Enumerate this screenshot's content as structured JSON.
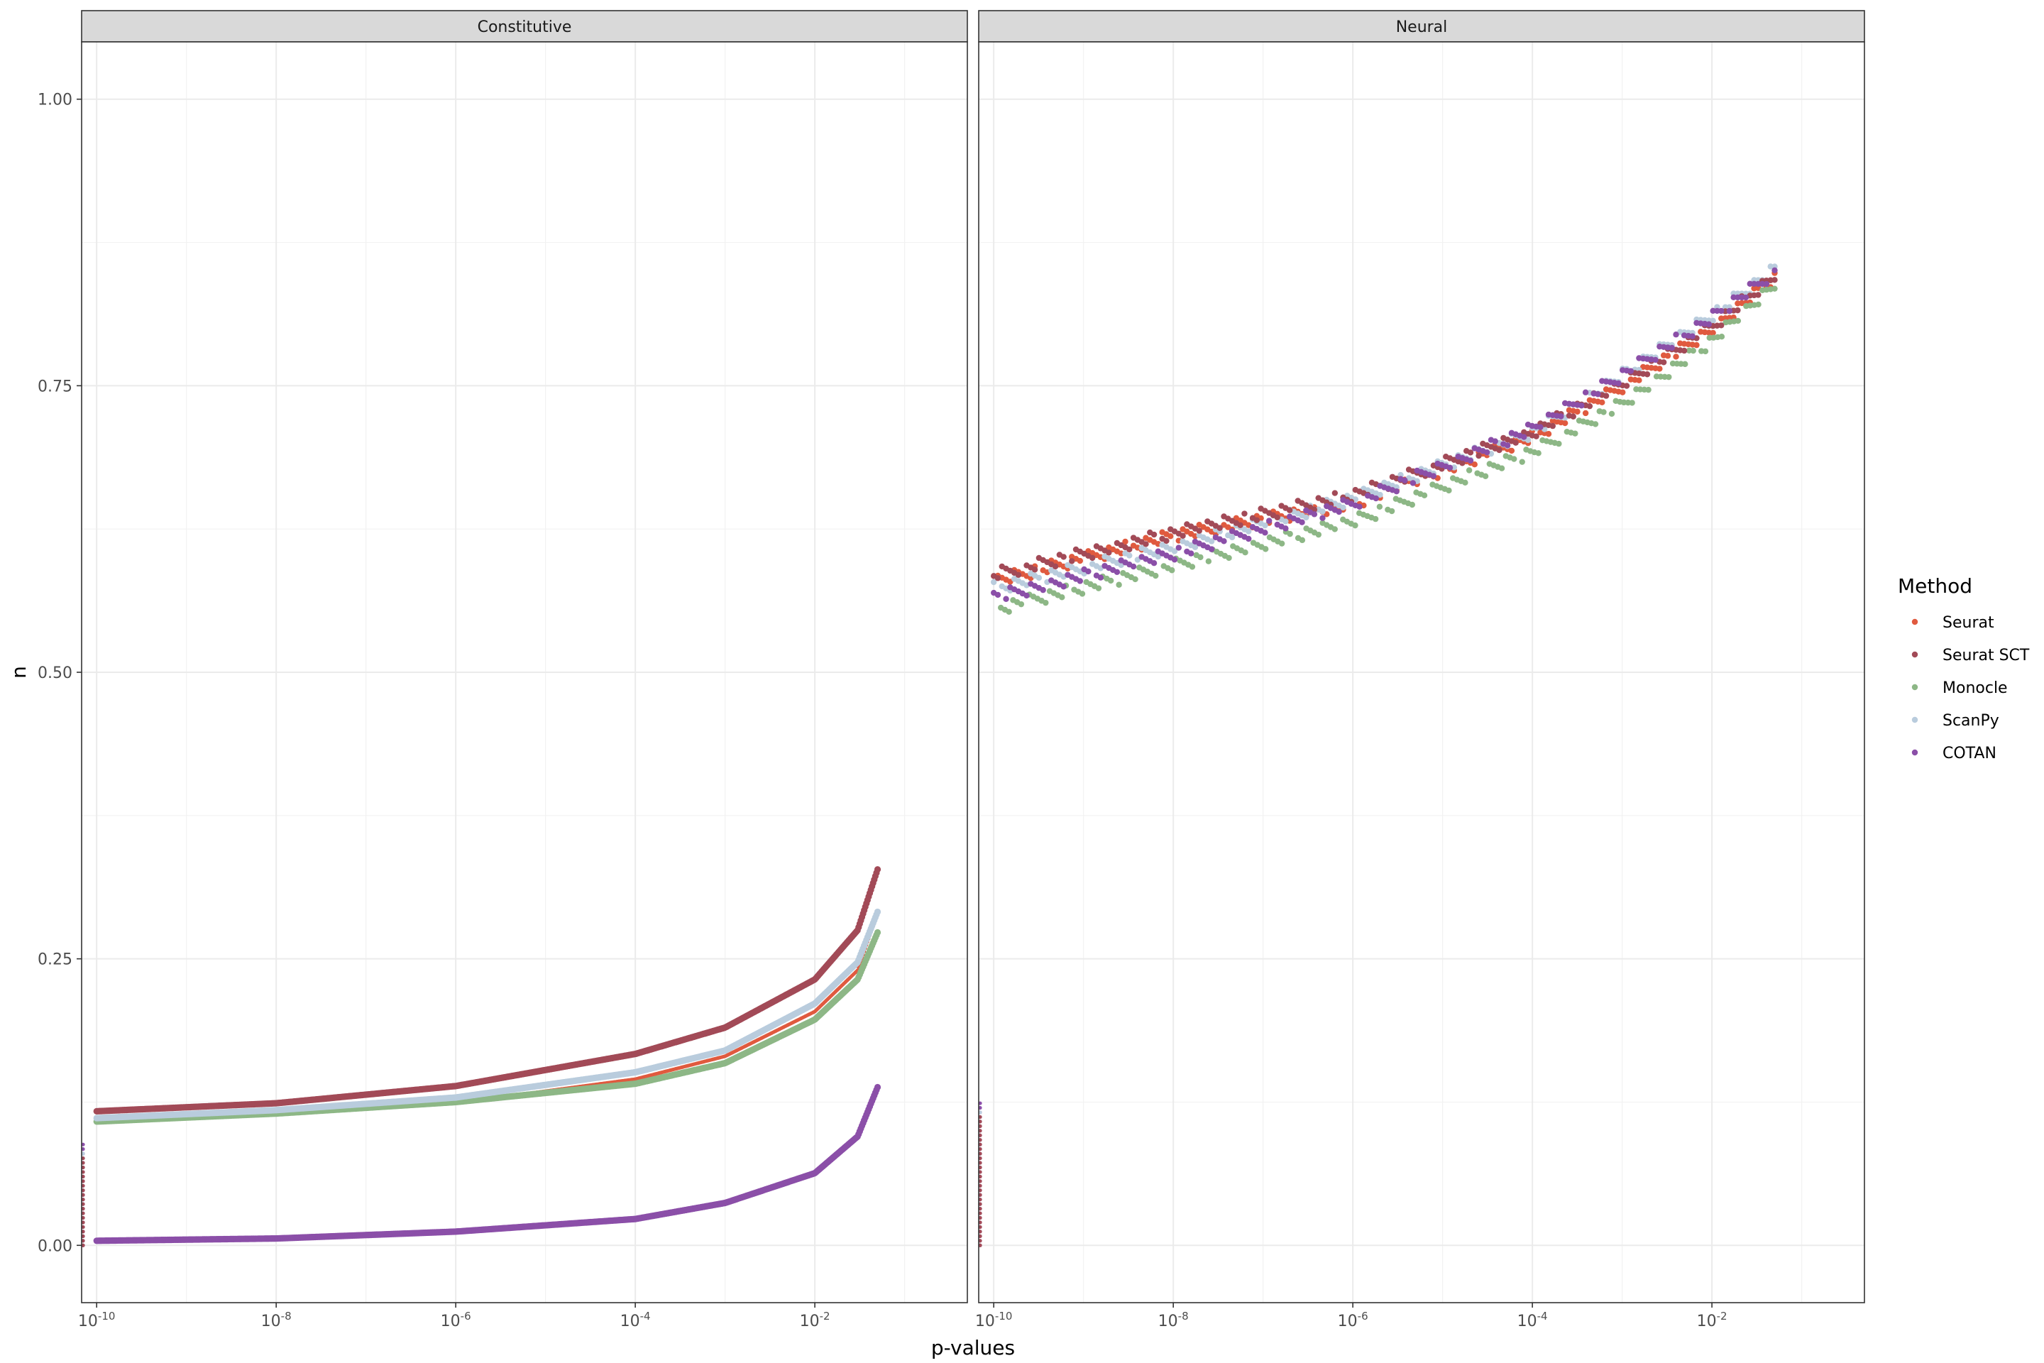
{
  "chart_data": {
    "type": "scatter",
    "x_scale": "log10",
    "xlabel": "p-values",
    "ylabel": "n",
    "xlim": [
      6.8e-11,
      0.5
    ],
    "ylim": [
      -0.05,
      1.05
    ],
    "x_ticks": [
      {
        "base": "10",
        "exp": "-10",
        "value": 1e-10
      },
      {
        "base": "10",
        "exp": "-8",
        "value": 1e-08
      },
      {
        "base": "10",
        "exp": "-6",
        "value": 1e-06
      },
      {
        "base": "10",
        "exp": "-4",
        "value": 0.0001
      },
      {
        "base": "10",
        "exp": "-2",
        "value": 0.01
      }
    ],
    "y_ticks": [
      {
        "label": "0.00",
        "value": 0.0
      },
      {
        "label": "0.25",
        "value": 0.25
      },
      {
        "label": "0.50",
        "value": 0.5
      },
      {
        "label": "0.75",
        "value": 0.75
      },
      {
        "label": "1.00",
        "value": 1.0
      }
    ],
    "grid": true,
    "legend": {
      "title": "Method",
      "position": "right",
      "entries": [
        {
          "name": "Seurat",
          "color": "#E05A3F"
        },
        {
          "name": "Seurat SCT",
          "color": "#A24A57"
        },
        {
          "name": "Monocle",
          "color": "#8DB786"
        },
        {
          "name": "ScanPy",
          "color": "#B9CCDD"
        },
        {
          "name": "COTAN",
          "color": "#8B4FA8"
        }
      ]
    },
    "panels": [
      {
        "title": "Constitutive",
        "series": [
          {
            "name": "Seurat",
            "points": [
              [
                1e-10,
                0.11
              ],
              [
                1e-08,
                0.116
              ],
              [
                1e-06,
                0.124
              ],
              [
                0.0001,
                0.145
              ],
              [
                0.001,
                0.165
              ],
              [
                0.01,
                0.204
              ],
              [
                0.03,
                0.24
              ],
              [
                0.05,
                0.29
              ]
            ]
          },
          {
            "name": "Seurat SCT",
            "points": [
              [
                1e-10,
                0.117
              ],
              [
                1e-08,
                0.124
              ],
              [
                1e-06,
                0.139
              ],
              [
                0.0001,
                0.167
              ],
              [
                0.001,
                0.19
              ],
              [
                0.01,
                0.232
              ],
              [
                0.03,
                0.275
              ],
              [
                0.05,
                0.328
              ]
            ]
          },
          {
            "name": "Monocle",
            "points": [
              [
                1e-10,
                0.108
              ],
              [
                1e-08,
                0.115
              ],
              [
                1e-06,
                0.125
              ],
              [
                0.0001,
                0.141
              ],
              [
                0.001,
                0.159
              ],
              [
                0.01,
                0.197
              ],
              [
                0.03,
                0.232
              ],
              [
                0.05,
                0.273
              ]
            ]
          },
          {
            "name": "ScanPy",
            "points": [
              [
                1e-10,
                0.111
              ],
              [
                1e-08,
                0.118
              ],
              [
                1e-06,
                0.129
              ],
              [
                0.0001,
                0.151
              ],
              [
                0.001,
                0.17
              ],
              [
                0.01,
                0.211
              ],
              [
                0.03,
                0.247
              ],
              [
                0.05,
                0.291
              ]
            ]
          },
          {
            "name": "COTAN",
            "points": [
              [
                1e-10,
                0.004
              ],
              [
                1e-08,
                0.006
              ],
              [
                1e-06,
                0.012
              ],
              [
                0.0001,
                0.023
              ],
              [
                0.001,
                0.037
              ],
              [
                0.01,
                0.063
              ],
              [
                0.03,
                0.095
              ],
              [
                0.05,
                0.138
              ]
            ]
          }
        ]
      },
      {
        "title": "Neural",
        "series": [
          {
            "name": "Seurat",
            "points": [
              [
                1e-10,
                0.58
              ],
              [
                1e-08,
                0.62
              ],
              [
                1e-06,
                0.648
              ],
              [
                0.0001,
                0.706
              ],
              [
                0.001,
                0.75
              ],
              [
                0.01,
                0.8
              ],
              [
                0.05,
                0.845
              ]
            ]
          },
          {
            "name": "Seurat SCT",
            "points": [
              [
                1e-10,
                0.586
              ],
              [
                1e-08,
                0.622
              ],
              [
                1e-06,
                0.655
              ],
              [
                0.0001,
                0.71
              ],
              [
                0.001,
                0.752
              ],
              [
                0.01,
                0.802
              ],
              [
                0.05,
                0.847
              ]
            ]
          },
          {
            "name": "Monocle",
            "points": [
              [
                1.2e-10,
                0.557
              ],
              [
                1e-08,
                0.594
              ],
              [
                1e-06,
                0.632
              ],
              [
                0.0001,
                0.693
              ],
              [
                0.001,
                0.735
              ],
              [
                0.01,
                0.79
              ],
              [
                0.05,
                0.838
              ]
            ]
          },
          {
            "name": "ScanPy",
            "points": [
              [
                1e-10,
                0.574
              ],
              [
                1e-08,
                0.61
              ],
              [
                1e-06,
                0.652
              ],
              [
                0.0001,
                0.71
              ],
              [
                0.001,
                0.76
              ],
              [
                0.01,
                0.812
              ],
              [
                0.05,
                0.852
              ]
            ]
          },
          {
            "name": "COTAN",
            "points": [
              [
                1e-10,
                0.566
              ],
              [
                1e-08,
                0.604
              ],
              [
                1e-06,
                0.648
              ],
              [
                0.0001,
                0.713
              ],
              [
                0.001,
                0.76
              ],
              [
                0.01,
                0.81
              ],
              [
                0.05,
                0.85
              ]
            ]
          }
        ]
      }
    ]
  }
}
